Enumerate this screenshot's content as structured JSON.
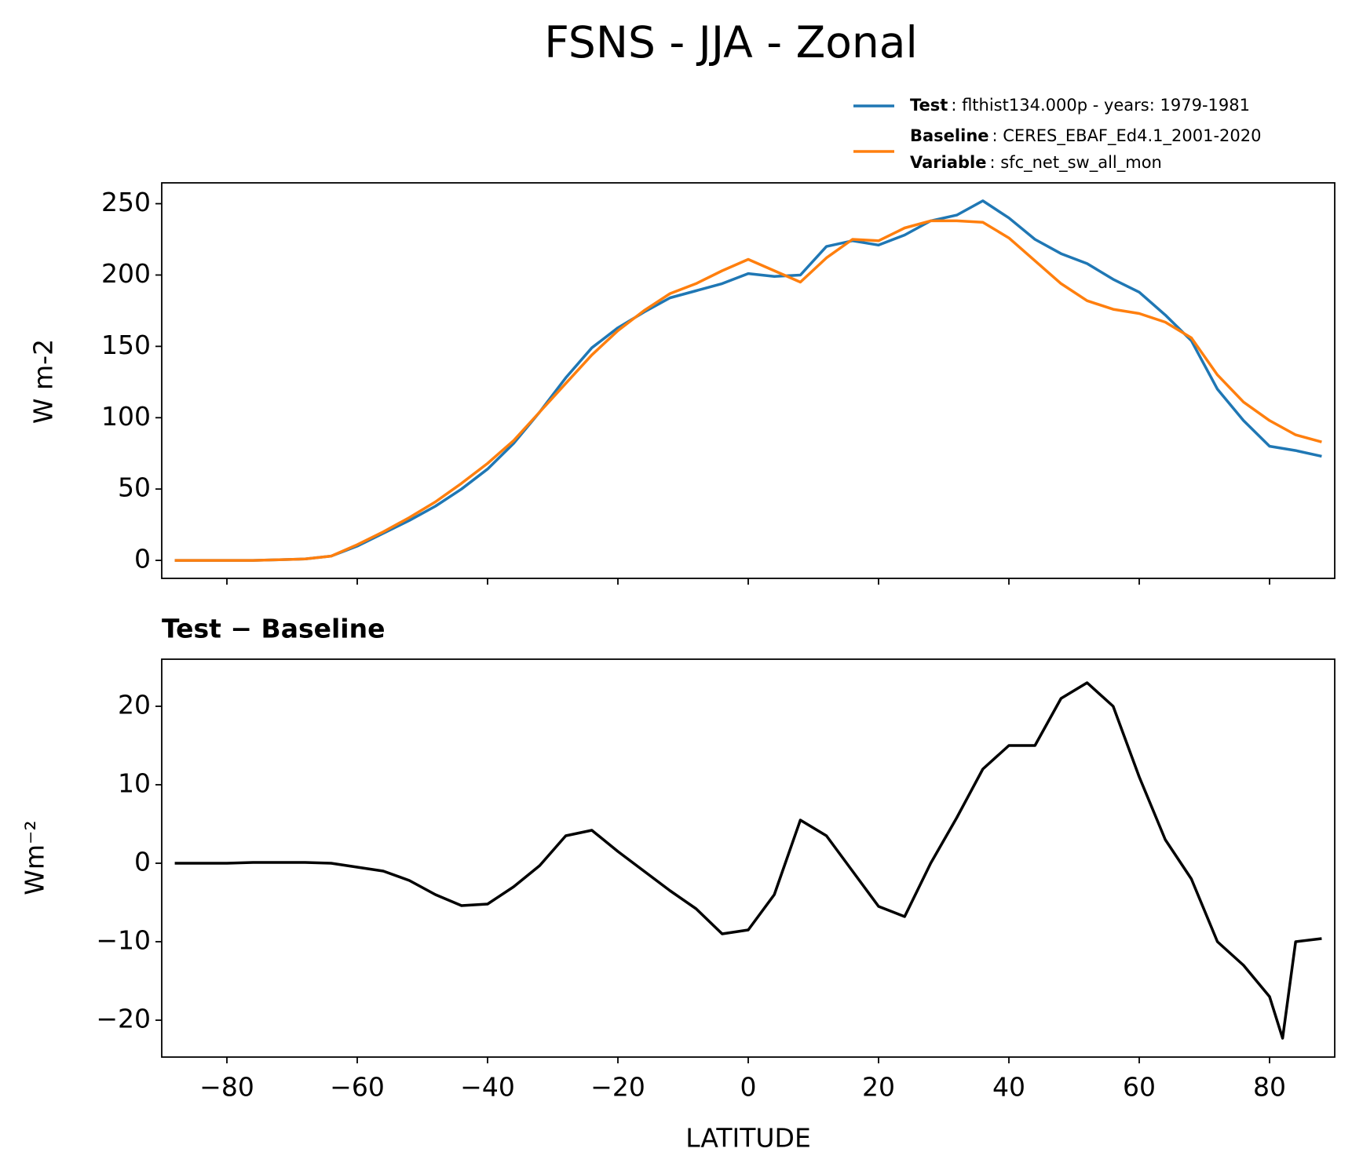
{
  "chart_data": [
    {
      "type": "line",
      "title": "FSNS - JJA - Zonal",
      "ylabel": "W m-2",
      "x": [
        -88,
        -84,
        -80,
        -76,
        -72,
        -68,
        -64,
        -60,
        -56,
        -52,
        -48,
        -44,
        -40,
        -36,
        -32,
        -28,
        -24,
        -20,
        -16,
        -12,
        -8,
        -4,
        0,
        4,
        8,
        12,
        16,
        20,
        24,
        28,
        32,
        36,
        40,
        44,
        48,
        52,
        56,
        60,
        64,
        68,
        72,
        76,
        80,
        84,
        88
      ],
      "series": [
        {
          "name": "Test",
          "legend_detail": ": flthist134.000p - years: 1979-1981",
          "color": "#1f77b4",
          "values": [
            0,
            0,
            0,
            0,
            0.5,
            1,
            3,
            10,
            19,
            28,
            38,
            50,
            64,
            82,
            104,
            128,
            149,
            163,
            174,
            184,
            189,
            194,
            201,
            199,
            200,
            220,
            224,
            221,
            228,
            238,
            242,
            252,
            240,
            225,
            215,
            208,
            197,
            188,
            172,
            154,
            120,
            98,
            80,
            77,
            73
          ]
        },
        {
          "name": "Baseline",
          "legend_detail": ": CERES_EBAF_Ed4.1_2001-2020",
          "legend_extra_name": "Variable",
          "legend_extra_detail": ": sfc_net_sw_all_mon",
          "color": "#ff7f0e",
          "values": [
            0,
            0,
            0,
            0,
            0.5,
            1,
            3,
            11,
            20,
            30,
            41,
            54,
            68,
            84,
            104,
            124,
            144,
            161,
            175,
            187,
            194,
            203,
            211,
            203,
            195,
            212,
            225,
            224,
            233,
            238,
            238,
            237,
            226,
            210,
            194,
            182,
            176,
            173,
            167,
            156,
            130,
            111,
            98,
            88,
            83
          ]
        }
      ],
      "xlim": [
        -90,
        90
      ],
      "xticks": [
        -80,
        -60,
        -40,
        -20,
        0,
        20,
        40,
        60,
        80
      ],
      "ylim": [
        -12.6,
        264.6
      ],
      "yticks": [
        0,
        50,
        100,
        150,
        200,
        250
      ]
    },
    {
      "type": "line",
      "title": "Test − Baseline",
      "ylabel": "Wm⁻²",
      "xlabel": "LATITUDE",
      "x": [
        -88,
        -84,
        -80,
        -76,
        -72,
        -68,
        -64,
        -60,
        -56,
        -52,
        -48,
        -44,
        -40,
        -36,
        -32,
        -28,
        -24,
        -20,
        -16,
        -12,
        -8,
        -4,
        0,
        4,
        8,
        12,
        16,
        20,
        24,
        28,
        32,
        36,
        40,
        44,
        48,
        52,
        56,
        60,
        64,
        68,
        72,
        76,
        80,
        82,
        84,
        88
      ],
      "series": [
        {
          "color": "#000000",
          "values": [
            0,
            0,
            0,
            0.1,
            0.1,
            0.1,
            0,
            -0.5,
            -1,
            -2.2,
            -4,
            -5.4,
            -5.2,
            -3,
            -0.3,
            3.5,
            4.2,
            1.5,
            -1,
            -3.5,
            -5.8,
            -9,
            -8.5,
            -4,
            5.5,
            3.5,
            -1,
            -5.5,
            -6.8,
            0,
            5.8,
            12,
            15,
            15,
            21,
            23,
            20,
            11,
            3,
            -2,
            -10,
            -13,
            -17,
            -22.3,
            -10,
            -9.6
          ]
        }
      ],
      "xlim": [
        -90,
        90
      ],
      "xticks": [
        {
          "value": -80,
          "label": "−80"
        },
        {
          "value": -60,
          "label": "−60"
        },
        {
          "value": -40,
          "label": "−40"
        },
        {
          "value": -20,
          "label": "−20"
        },
        0,
        20,
        40,
        60,
        80
      ],
      "ylim": [
        -24.7,
        26.0
      ],
      "yticks": [
        {
          "value": -20,
          "label": "−20"
        },
        {
          "value": -10,
          "label": "−10"
        },
        0,
        10,
        20
      ]
    }
  ]
}
